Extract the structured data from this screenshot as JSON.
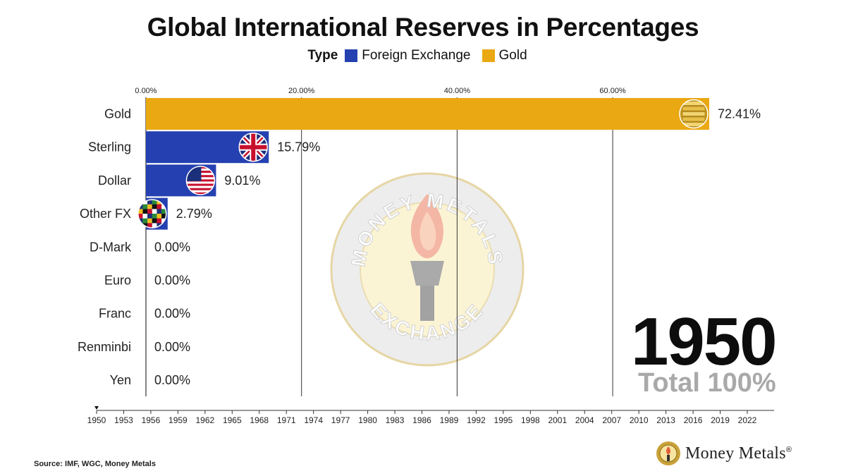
{
  "colors": {
    "foreign_exchange": "#2540b0",
    "gold": "#eaa812",
    "total_text": "#a9a9a9"
  },
  "icons": {
    "gold": "gold-bars-icon",
    "sterling": "uk-flag-icon",
    "dollar": "us-flag-icon",
    "other_fx": "world-flags-icon",
    "watermark": "money-metals-torch-seal-icon",
    "brand": "money-metals-seal-icon"
  },
  "watermark": {
    "top_text": "MONEY METALS",
    "bottom_text": "EXCHANGE"
  },
  "chart_data": {
    "type": "bar",
    "orientation": "horizontal",
    "title": "Global International Reserves in Percentages",
    "legend_title": "Type",
    "legend": [
      {
        "name": "Foreign Exchange",
        "color": "#2540b0"
      },
      {
        "name": "Gold",
        "color": "#eaa812"
      }
    ],
    "legend_placement": "top-center",
    "categories": [
      "Gold",
      "Sterling",
      "Dollar",
      "Other FX",
      "D-Mark",
      "Euro",
      "Franc",
      "Renminbi",
      "Yen"
    ],
    "values": [
      72.41,
      15.79,
      9.01,
      2.79,
      0,
      0,
      0,
      0,
      0
    ],
    "value_labels": [
      "72.41%",
      "15.79%",
      "9.01%",
      "2.79%",
      "0.00%",
      "0.00%",
      "0.00%",
      "0.00%",
      "0.00%"
    ],
    "types": [
      "Gold",
      "Foreign Exchange",
      "Foreign Exchange",
      "Foreign Exchange",
      "Foreign Exchange",
      "Foreign Exchange",
      "Foreign Exchange",
      "Foreign Exchange",
      "Foreign Exchange"
    ],
    "xticks": [
      0,
      20,
      40,
      60
    ],
    "xtick_labels": [
      "0.00%",
      "20.00%",
      "40.00%",
      "60.00%"
    ],
    "xlim": [
      0,
      72.41
    ],
    "grid": "vertical",
    "year": "1950",
    "total_label": "Total 100%",
    "timeline": {
      "years": [
        "1950",
        "1953",
        "1956",
        "1959",
        "1962",
        "1965",
        "1968",
        "1971",
        "1974",
        "1977",
        "1980",
        "1983",
        "1986",
        "1989",
        "1992",
        "1995",
        "1998",
        "2001",
        "2004",
        "2007",
        "2010",
        "2013",
        "2016",
        "2019",
        "2022"
      ],
      "current": "1950"
    }
  },
  "source": "Source: IMF, WGC, Money Metals",
  "brand": {
    "name": "Money Metals",
    "mark": "®"
  }
}
